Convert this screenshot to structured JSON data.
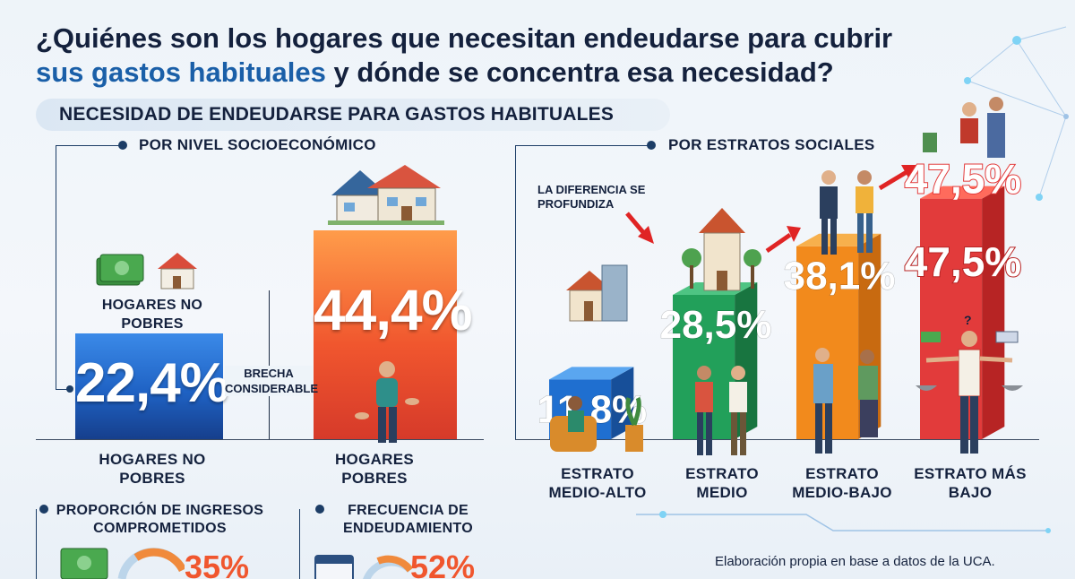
{
  "header": {
    "title_part1": "¿Quiénes son los hogares que necesitan endeudarse para cubrir",
    "title_part2_highlight": "sus gastos habituales",
    "title_part3": " y dónde se concentra esa necesidad?"
  },
  "section": {
    "title": "NECESIDAD DE ENDEUDARSE PARA GASTOS HABITUALES"
  },
  "left_panel": {
    "subtitle": "POR NIVEL SOCIOECONÓMICO",
    "top_label": "HOGARES NO POBRES",
    "gap_label": "BRECHA CONSIDERABLE"
  },
  "right_panel": {
    "subtitle": "POR ESTRATOS SOCIALES",
    "annotation": "LA DIFERENCIA SE PROFUNDIZA"
  },
  "bottom": {
    "card1_title": "PROPORCIÓN DE INGRESOS COMPROMETIDOS",
    "card1_value": "35%",
    "card2_title": "FRECUENCIA DE ENDEUDAMIENTO",
    "card2_value": "52%",
    "source": "Elaboración propia en base a datos de la UCA."
  },
  "colors": {
    "no_pobres": "#1f62c4",
    "pobres": "#f0562e",
    "medio_alto": "#1f6fd0",
    "medio": "#22a05a",
    "medio_bajo": "#f28a1c",
    "mas_bajo": "#e23b3b"
  },
  "chart_data": [
    {
      "type": "bar",
      "title": "POR NIVEL SOCIOECONÓMICO",
      "categories": [
        "HOGARES NO POBRES",
        "HOGARES POBRES"
      ],
      "values": [
        22.4,
        44.4
      ],
      "labels": [
        "22,4%",
        "44,4%"
      ],
      "ylim": [
        0,
        50
      ],
      "grid": false
    },
    {
      "type": "bar",
      "title": "POR ESTRATOS SOCIALES",
      "categories": [
        "ESTRATO MEDIO-ALTO",
        "ESTRATO MEDIO",
        "ESTRATO MEDIO-BAJO",
        "ESTRATO MÁS BAJO"
      ],
      "values": [
        11.8,
        28.5,
        38.1,
        47.5
      ],
      "labels": [
        "11,8%",
        "28,5%",
        "38,1%",
        "47,5%"
      ],
      "extra_label": "47,5%",
      "ylim": [
        0,
        50
      ],
      "grid": false
    }
  ]
}
